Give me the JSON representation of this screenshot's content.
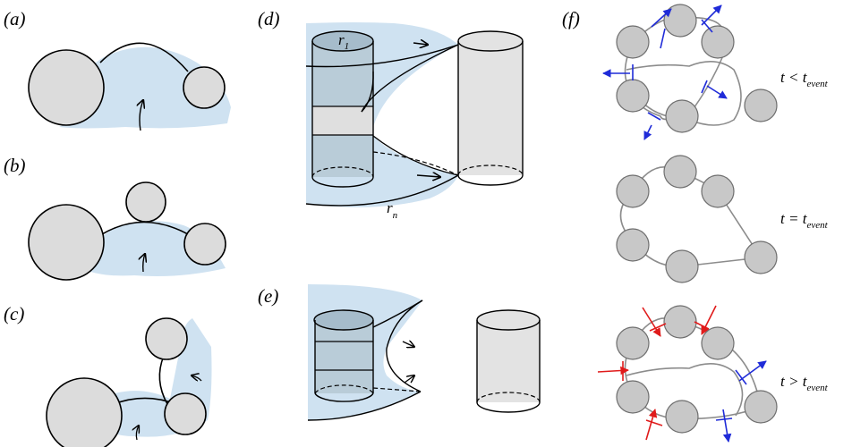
{
  "panels": {
    "a": "(a)",
    "b": "(b)",
    "c": "(c)",
    "d": "(d)",
    "e": "(e)",
    "f": "(f)"
  },
  "panel_d": {
    "r1_main": "r",
    "r1_sub": "1",
    "rn_main": "r",
    "rn_sub": "n"
  },
  "panel_f": {
    "before": {
      "lhs": "t",
      "rel": " < ",
      "var": "t",
      "sub": "event"
    },
    "at": {
      "lhs": "t",
      "rel": " = ",
      "var": "t",
      "sub": "event"
    },
    "after": {
      "lhs": "t",
      "rel": " > ",
      "var": "t",
      "sub": "event"
    }
  },
  "colors": {
    "meniscus": "#cfe2f1",
    "particle": "#dcdcdc",
    "cylinder_wet": "#b9ccd8",
    "bond": "#8c8c8c",
    "force_out": "#1f2bd8",
    "force_in": "#e01b1b"
  }
}
